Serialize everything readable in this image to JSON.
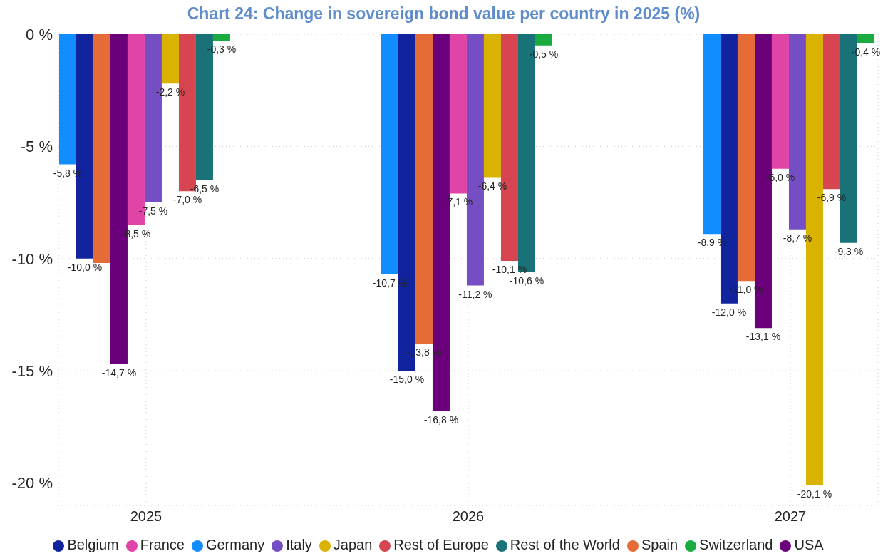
{
  "chart_data": {
    "type": "bar",
    "title": "Chart 24: Change in sovereign bond value per country in 2025 (%)",
    "categories": [
      "2025",
      "2026",
      "2027"
    ],
    "series": [
      {
        "name": "Germany",
        "color": "#118dff",
        "values": [
          -5.8,
          -10.7,
          -8.9
        ],
        "value_labels": [
          "-5,8 %",
          "-10,7 %",
          "-8,9 %"
        ]
      },
      {
        "name": "Belgium",
        "color": "#12239e",
        "values": [
          -10.0,
          -15.0,
          -12.0
        ],
        "value_labels": [
          "-10,0 %",
          "-15,0 %",
          "-12,0 %"
        ]
      },
      {
        "name": "Spain",
        "color": "#e66c37",
        "values": [
          -10.2,
          -13.8,
          -11.0
        ],
        "value_labels": [
          null,
          "-13,8 %",
          "-11,0 %"
        ]
      },
      {
        "name": "USA",
        "color": "#6b007b",
        "values": [
          -14.7,
          -16.8,
          -13.1
        ],
        "value_labels": [
          "-14,7 %",
          "-16,8 %",
          "-13,1 %"
        ]
      },
      {
        "name": "France",
        "color": "#e044a7",
        "values": [
          -8.5,
          -7.1,
          -6.0
        ],
        "value_labels": [
          "-8,5 %",
          "-7,1 %",
          "-6,0 %"
        ]
      },
      {
        "name": "Italy",
        "color": "#744ec2",
        "values": [
          -7.5,
          -11.2,
          -8.7
        ],
        "value_labels": [
          "-7,5 %",
          "-11,2 %",
          "-8,7 %"
        ]
      },
      {
        "name": "Japan",
        "color": "#d9b300",
        "values": [
          -2.2,
          -6.4,
          -20.1
        ],
        "value_labels": [
          "-2,2 %",
          "-6,4 %",
          "-20,1 %"
        ]
      },
      {
        "name": "Rest of Europe",
        "color": "#d64550",
        "values": [
          -7.0,
          -10.1,
          -6.9
        ],
        "value_labels": [
          "-7,0 %",
          "-10,1 %",
          "-6,9 %"
        ]
      },
      {
        "name": "Rest of the World",
        "color": "#197278",
        "values": [
          -6.5,
          -10.6,
          -9.3
        ],
        "value_labels": [
          "-6,5 %",
          "-10,6 %",
          "-9,3 %"
        ]
      },
      {
        "name": "Switzerland",
        "color": "#1aab40",
        "values": [
          -0.3,
          -0.5,
          -0.4
        ],
        "value_labels": [
          "-0,3 %",
          "-0,5 %",
          "-0,4 %"
        ]
      }
    ],
    "ylim": [
      -21,
      0
    ],
    "yticks": [
      {
        "value": -20,
        "label": "-20 %"
      },
      {
        "value": -15,
        "label": "-15 %"
      },
      {
        "value": -10,
        "label": "-10 %"
      },
      {
        "value": -5,
        "label": "-5 %"
      },
      {
        "value": 0,
        "label": "0 %"
      }
    ],
    "grid": true,
    "legend": "bottom"
  }
}
